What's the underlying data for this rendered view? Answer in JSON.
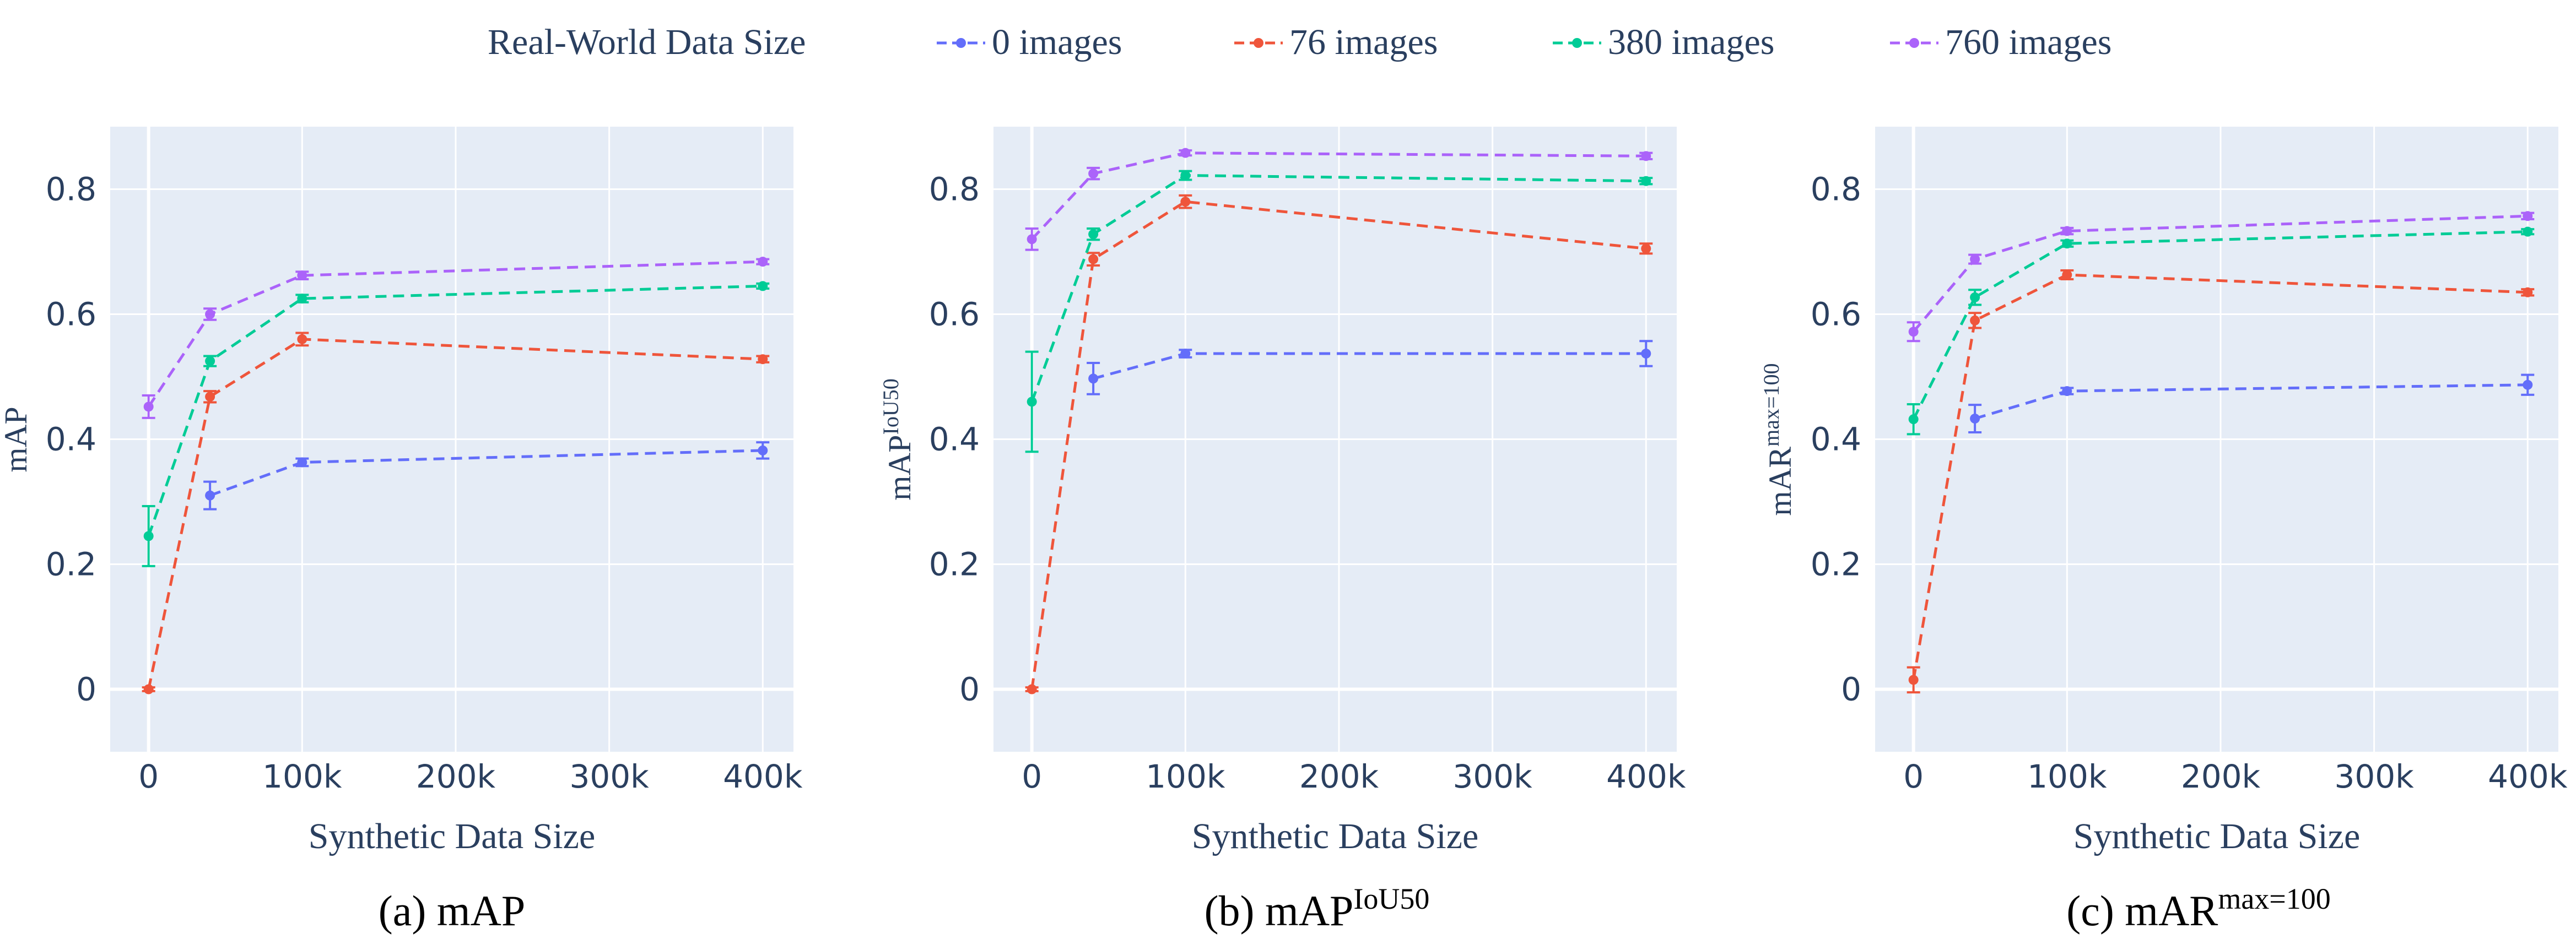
{
  "legend": {
    "title": "Real-World Data Size",
    "items": [
      {
        "label": "0 images",
        "color": "#636efa"
      },
      {
        "label": "76 images",
        "color": "#ef553b"
      },
      {
        "label": "380 images",
        "color": "#00cc96"
      },
      {
        "label": "760 images",
        "color": "#ab63fa"
      }
    ]
  },
  "colors": {
    "plot_background": "#e5ecf6",
    "grid": "#ffffff",
    "axis_text": "#2a3f5f"
  },
  "chart_data": [
    {
      "type": "line",
      "caption": "(a) mAP",
      "xlabel": "Synthetic Data Size",
      "ylabel": "mAP",
      "xlim": [
        -25000,
        420000
      ],
      "ylim": [
        -0.1,
        0.9
      ],
      "xticks": [
        {
          "value": 0,
          "label": "0"
        },
        {
          "value": 100000,
          "label": "100k"
        },
        {
          "value": 200000,
          "label": "200k"
        },
        {
          "value": 300000,
          "label": "300k"
        },
        {
          "value": 400000,
          "label": "400k"
        }
      ],
      "yticks": [
        {
          "value": 0,
          "label": "0"
        },
        {
          "value": 0.2,
          "label": "0.2"
        },
        {
          "value": 0.4,
          "label": "0.4"
        },
        {
          "value": 0.6,
          "label": "0.6"
        },
        {
          "value": 0.8,
          "label": "0.8"
        }
      ],
      "grid": true,
      "line_style": "dashed",
      "series": [
        {
          "name": "0 images",
          "x": [
            40000,
            100000,
            400000
          ],
          "y": [
            0.31,
            0.363,
            0.382
          ],
          "err": [
            0.022,
            0.006,
            0.013
          ]
        },
        {
          "name": "76 images",
          "x": [
            0,
            40000,
            100000,
            400000
          ],
          "y": [
            0.0,
            0.468,
            0.56,
            0.528
          ],
          "err": [
            0.003,
            0.009,
            0.01,
            0.005
          ]
        },
        {
          "name": "380 images",
          "x": [
            0,
            40000,
            100000,
            400000
          ],
          "y": [
            0.245,
            0.525,
            0.625,
            0.645
          ],
          "err": [
            0.048,
            0.008,
            0.006,
            0.004
          ]
        },
        {
          "name": "760 images",
          "x": [
            0,
            40000,
            100000,
            400000
          ],
          "y": [
            0.452,
            0.6,
            0.662,
            0.684
          ],
          "err": [
            0.018,
            0.009,
            0.006,
            0.004
          ]
        }
      ]
    },
    {
      "type": "line",
      "caption": "(b) mAP",
      "caption_sup": "IoU50",
      "xlabel": "Synthetic Data Size",
      "ylabel": "mAP",
      "ylabel_sup": "IoU50",
      "xlim": [
        -25000,
        420000
      ],
      "ylim": [
        -0.1,
        0.9
      ],
      "xticks": [
        {
          "value": 0,
          "label": "0"
        },
        {
          "value": 100000,
          "label": "100k"
        },
        {
          "value": 200000,
          "label": "200k"
        },
        {
          "value": 300000,
          "label": "300k"
        },
        {
          "value": 400000,
          "label": "400k"
        }
      ],
      "yticks": [
        {
          "value": 0,
          "label": "0"
        },
        {
          "value": 0.2,
          "label": "0.2"
        },
        {
          "value": 0.4,
          "label": "0.4"
        },
        {
          "value": 0.6,
          "label": "0.6"
        },
        {
          "value": 0.8,
          "label": "0.8"
        }
      ],
      "grid": true,
      "line_style": "dashed",
      "series": [
        {
          "name": "0 images",
          "x": [
            40000,
            100000,
            400000
          ],
          "y": [
            0.497,
            0.537,
            0.537
          ],
          "err": [
            0.025,
            0.006,
            0.02
          ]
        },
        {
          "name": "76 images",
          "x": [
            0,
            40000,
            100000,
            400000
          ],
          "y": [
            0.0,
            0.688,
            0.78,
            0.705
          ],
          "err": [
            0.003,
            0.01,
            0.01,
            0.008
          ]
        },
        {
          "name": "380 images",
          "x": [
            0,
            40000,
            100000,
            400000
          ],
          "y": [
            0.46,
            0.728,
            0.822,
            0.813
          ],
          "err": [
            0.08,
            0.009,
            0.007,
            0.005
          ]
        },
        {
          "name": "760 images",
          "x": [
            0,
            40000,
            100000,
            400000
          ],
          "y": [
            0.72,
            0.825,
            0.858,
            0.853
          ],
          "err": [
            0.017,
            0.009,
            0.004,
            0.005
          ]
        }
      ]
    },
    {
      "type": "line",
      "caption": "(c) mAR",
      "caption_sup": "max=100",
      "xlabel": "Synthetic Data Size",
      "ylabel": "mAR",
      "ylabel_sup": "max=100",
      "xlim": [
        -25000,
        420000
      ],
      "ylim": [
        -0.1,
        0.9
      ],
      "xticks": [
        {
          "value": 0,
          "label": "0"
        },
        {
          "value": 100000,
          "label": "100k"
        },
        {
          "value": 200000,
          "label": "200k"
        },
        {
          "value": 300000,
          "label": "300k"
        },
        {
          "value": 400000,
          "label": "400k"
        }
      ],
      "yticks": [
        {
          "value": 0,
          "label": "0"
        },
        {
          "value": 0.2,
          "label": "0.2"
        },
        {
          "value": 0.4,
          "label": "0.4"
        },
        {
          "value": 0.6,
          "label": "0.6"
        },
        {
          "value": 0.8,
          "label": "0.8"
        }
      ],
      "grid": true,
      "line_style": "dashed",
      "series": [
        {
          "name": "0 images",
          "x": [
            40000,
            100000,
            400000
          ],
          "y": [
            0.433,
            0.477,
            0.487
          ],
          "err": [
            0.022,
            0.005,
            0.016
          ]
        },
        {
          "name": "76 images",
          "x": [
            0,
            40000,
            100000,
            400000
          ],
          "y": [
            0.015,
            0.59,
            0.663,
            0.635
          ],
          "err": [
            0.02,
            0.012,
            0.007,
            0.005
          ]
        },
        {
          "name": "380 images",
          "x": [
            0,
            40000,
            100000,
            400000
          ],
          "y": [
            0.432,
            0.627,
            0.713,
            0.732
          ],
          "err": [
            0.024,
            0.012,
            0.005,
            0.004
          ]
        },
        {
          "name": "760 images",
          "x": [
            0,
            40000,
            100000,
            400000
          ],
          "y": [
            0.572,
            0.688,
            0.733,
            0.757
          ],
          "err": [
            0.015,
            0.007,
            0.005,
            0.005
          ]
        }
      ]
    }
  ]
}
